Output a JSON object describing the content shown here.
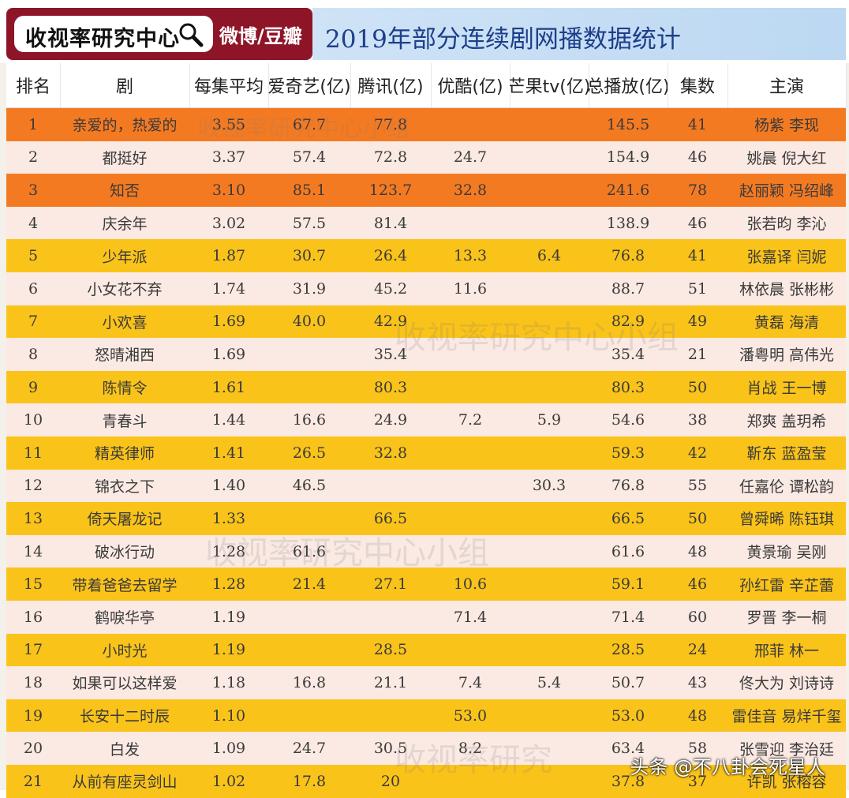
{
  "header": {
    "brand_name": "收视率研究中心",
    "brand_right": "微博/豆瓣",
    "title": "2019年部分连续剧网播数据统计"
  },
  "columns": [
    "排名",
    "剧",
    "每集平均",
    "爱奇艺(亿)",
    "腾讯(亿)",
    "优酷(亿)",
    "芒果tv(亿)",
    "总播放(亿)",
    "集数",
    "主演"
  ],
  "rows": [
    {
      "rank": "1",
      "name": "亲爱的，热爱的",
      "avg": "3.55",
      "iqy": "67.7",
      "tx": "77.8",
      "yk": "",
      "mg": "",
      "total": "145.5",
      "ep": "41",
      "cast": "杨紫 李现",
      "color": "#f47a22"
    },
    {
      "rank": "2",
      "name": "都挺好",
      "avg": "3.37",
      "iqy": "57.4",
      "tx": "72.8",
      "yk": "24.7",
      "mg": "",
      "total": "154.9",
      "ep": "46",
      "cast": "姚晨 倪大红",
      "color": "#fbe9e3"
    },
    {
      "rank": "3",
      "name": "知否",
      "avg": "3.10",
      "iqy": "85.1",
      "tx": "123.7",
      "yk": "32.8",
      "mg": "",
      "total": "241.6",
      "ep": "78",
      "cast": "赵丽颖 冯绍峰",
      "color": "#f47a22"
    },
    {
      "rank": "4",
      "name": "庆余年",
      "avg": "3.02",
      "iqy": "57.5",
      "tx": "81.4",
      "yk": "",
      "mg": "",
      "total": "138.9",
      "ep": "46",
      "cast": "张若昀 李沁",
      "color": "#fbe9e3"
    },
    {
      "rank": "5",
      "name": "少年派",
      "avg": "1.87",
      "iqy": "30.7",
      "tx": "26.4",
      "yk": "13.3",
      "mg": "6.4",
      "total": "76.8",
      "ep": "41",
      "cast": "张嘉译 闫妮",
      "color": "#fac319"
    },
    {
      "rank": "6",
      "name": "小女花不弃",
      "avg": "1.74",
      "iqy": "31.9",
      "tx": "45.2",
      "yk": "11.6",
      "mg": "",
      "total": "88.7",
      "ep": "51",
      "cast": "林依晨 张彬彬",
      "color": "#fbe9e3"
    },
    {
      "rank": "7",
      "name": "小欢喜",
      "avg": "1.69",
      "iqy": "40.0",
      "tx": "42.9",
      "yk": "",
      "mg": "",
      "total": "82.9",
      "ep": "49",
      "cast": "黄磊 海清",
      "color": "#fac319"
    },
    {
      "rank": "8",
      "name": "怒晴湘西",
      "avg": "1.69",
      "iqy": "",
      "tx": "35.4",
      "yk": "",
      "mg": "",
      "total": "35.4",
      "ep": "21",
      "cast": "潘粤明 高伟光",
      "color": "#fbe9e3"
    },
    {
      "rank": "9",
      "name": "陈情令",
      "avg": "1.61",
      "iqy": "",
      "tx": "80.3",
      "yk": "",
      "mg": "",
      "total": "80.3",
      "ep": "50",
      "cast": "肖战 王一博",
      "color": "#fac319"
    },
    {
      "rank": "10",
      "name": "青春斗",
      "avg": "1.44",
      "iqy": "16.6",
      "tx": "24.9",
      "yk": "7.2",
      "mg": "5.9",
      "total": "54.6",
      "ep": "38",
      "cast": "郑爽 盖玥希",
      "color": "#fbe9e3"
    },
    {
      "rank": "11",
      "name": "精英律师",
      "avg": "1.41",
      "iqy": "26.5",
      "tx": "32.8",
      "yk": "",
      "mg": "",
      "total": "59.3",
      "ep": "42",
      "cast": "靳东 蓝盈莹",
      "color": "#fac319"
    },
    {
      "rank": "12",
      "name": "锦衣之下",
      "avg": "1.40",
      "iqy": "46.5",
      "tx": "",
      "yk": "",
      "mg": "30.3",
      "total": "76.8",
      "ep": "55",
      "cast": "任嘉伦 谭松韵",
      "color": "#fbe9e3"
    },
    {
      "rank": "13",
      "name": "倚天屠龙记",
      "avg": "1.33",
      "iqy": "",
      "tx": "66.5",
      "yk": "",
      "mg": "",
      "total": "66.5",
      "ep": "50",
      "cast": "曾舜晞 陈钰琪",
      "color": "#fac319"
    },
    {
      "rank": "14",
      "name": "破冰行动",
      "avg": "1.28",
      "iqy": "61.6",
      "tx": "",
      "yk": "",
      "mg": "",
      "total": "61.6",
      "ep": "48",
      "cast": "黄景瑜 吴刚",
      "color": "#fbe9e3"
    },
    {
      "rank": "15",
      "name": "带着爸爸去留学",
      "avg": "1.28",
      "iqy": "21.4",
      "tx": "27.1",
      "yk": "10.6",
      "mg": "",
      "total": "59.1",
      "ep": "46",
      "cast": "孙红雷 辛芷蕾",
      "color": "#fac319"
    },
    {
      "rank": "16",
      "name": "鹤唳华亭",
      "avg": "1.19",
      "iqy": "",
      "tx": "",
      "yk": "71.4",
      "mg": "",
      "total": "71.4",
      "ep": "60",
      "cast": "罗晋 李一桐",
      "color": "#fbe9e3"
    },
    {
      "rank": "17",
      "name": "小时光",
      "avg": "1.19",
      "iqy": "",
      "tx": "28.5",
      "yk": "",
      "mg": "",
      "total": "28.5",
      "ep": "24",
      "cast": "邢菲 林一",
      "color": "#fac319"
    },
    {
      "rank": "18",
      "name": "如果可以这样爱",
      "avg": "1.18",
      "iqy": "16.8",
      "tx": "21.1",
      "yk": "7.4",
      "mg": "5.4",
      "total": "50.7",
      "ep": "43",
      "cast": "佟大为 刘诗诗",
      "color": "#fbe9e3"
    },
    {
      "rank": "19",
      "name": "长安十二时辰",
      "avg": "1.10",
      "iqy": "",
      "tx": "",
      "yk": "53.0",
      "mg": "",
      "total": "53.0",
      "ep": "48",
      "cast": "雷佳音 易烊千玺",
      "color": "#fac319"
    },
    {
      "rank": "20",
      "name": "白发",
      "avg": "1.09",
      "iqy": "24.7",
      "tx": "30.5",
      "yk": "8.2",
      "mg": "",
      "total": "63.4",
      "ep": "58",
      "cast": "张雪迎 李治廷",
      "color": "#fbe9e3"
    },
    {
      "rank": "21",
      "name": "从前有座灵剑山",
      "avg": "1.02",
      "iqy": "17.8",
      "tx": "20",
      "yk": "",
      "mg": "",
      "total": "37.8",
      "ep": "37",
      "cast": "许凯 张榕容",
      "color": "#fac319"
    }
  ],
  "watermarks": [
    "收视率研究中心小组",
    "收视率研究中心小组",
    "收视率研究中心小组",
    "收视率研究"
  ],
  "footer_watermark": "头条 @不八卦会死星人"
}
